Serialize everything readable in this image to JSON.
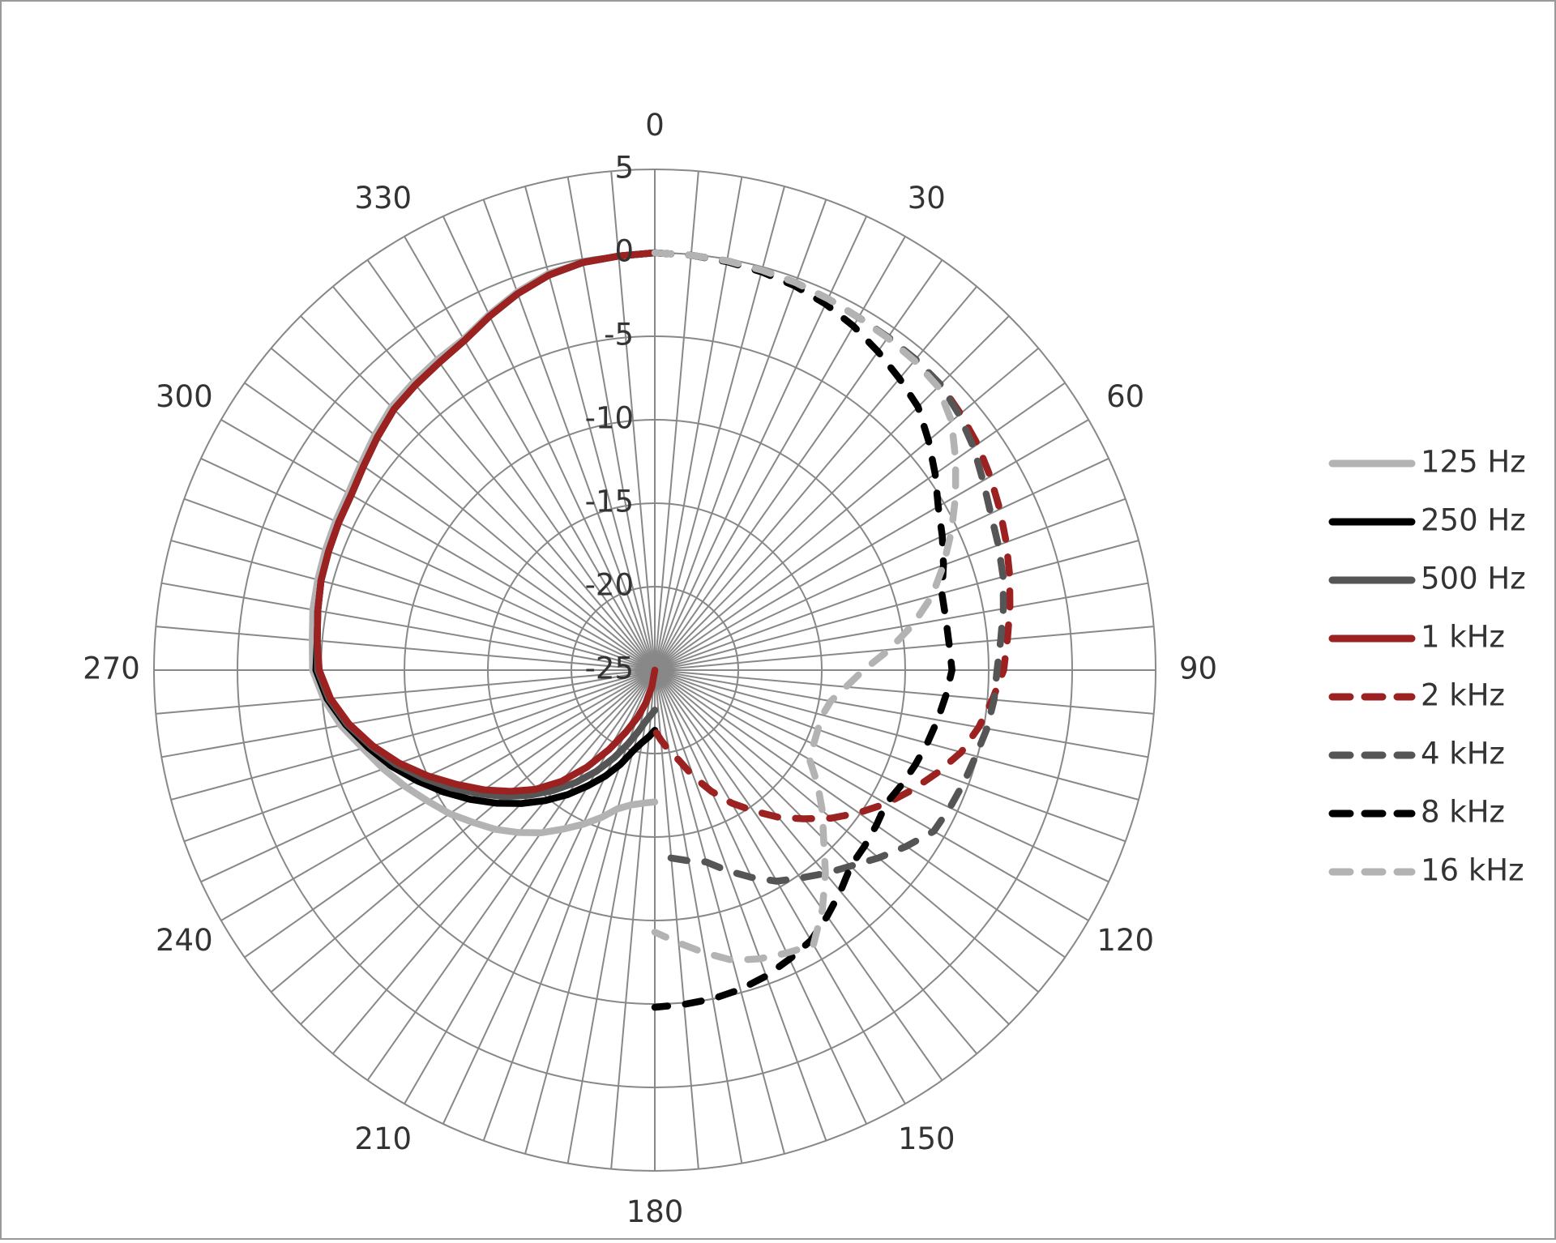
{
  "chart_data": {
    "type": "radar",
    "categories": [
      0,
      null,
      null,
      null,
      null,
      null,
      30,
      null,
      null,
      null,
      null,
      null,
      60,
      null,
      null,
      null,
      null,
      null,
      90,
      null,
      null,
      null,
      null,
      null,
      120,
      null,
      null,
      null,
      null,
      null,
      150,
      null,
      null,
      null,
      null,
      null,
      180,
      null,
      null,
      null,
      null,
      null,
      210,
      null,
      null,
      null,
      null,
      null,
      240,
      null,
      null,
      null,
      null,
      null,
      270,
      null,
      null,
      null,
      null,
      null,
      300,
      null,
      null,
      null,
      null,
      null,
      330,
      null,
      null,
      null,
      null,
      null
    ],
    "ylim": [
      -25,
      5
    ],
    "yticks": [
      -25,
      -20,
      -15,
      -10,
      -5,
      0,
      5
    ],
    "grid": true,
    "legend": "right",
    "series": [
      {
        "name": "125 Hz",
        "color": "#b3b3b3",
        "line_style": "solid",
        "values": [
          0,
          null,
          null,
          null,
          null,
          null,
          null,
          null,
          null,
          null,
          null,
          null,
          null,
          null,
          null,
          null,
          null,
          null,
          null,
          null,
          null,
          null,
          null,
          null,
          null,
          null,
          null,
          null,
          null,
          null,
          null,
          null,
          null,
          null,
          null,
          null,
          -17.1,
          -17.0,
          -16.8,
          -16.4,
          -15.6,
          -14.8,
          -14.0,
          -13.1,
          -12.3,
          -11.5,
          -10.8,
          -10.0,
          -9.3,
          -8.5,
          -7.7,
          -6.9,
          -5.9,
          -5.1,
          -4.5,
          -4.4,
          -4.2,
          -4.1,
          -4.0,
          -3.9,
          -3.8,
          -3.5,
          -3.1,
          -2.7,
          -2.5,
          -2.3,
          -2.1,
          -1.5,
          -0.9,
          -0.4,
          -0.2,
          -0.1
        ]
      },
      {
        "name": "250 Hz",
        "color": "#000000",
        "line_style": "solid",
        "values": [
          0,
          null,
          null,
          null,
          null,
          null,
          null,
          null,
          null,
          null,
          null,
          null,
          null,
          null,
          null,
          null,
          null,
          null,
          null,
          null,
          null,
          null,
          null,
          null,
          null,
          null,
          null,
          null,
          null,
          null,
          null,
          null,
          null,
          null,
          null,
          null,
          -21.4,
          -21.0,
          -20.6,
          -20.0,
          -19.0,
          -18.0,
          -17.0,
          -15.9,
          -14.8,
          -13.7,
          -12.6,
          -11.5,
          -10.4,
          -9.3,
          -8.2,
          -7.2,
          -6.2,
          -5.3,
          -4.7,
          -4.7,
          -4.5,
          -4.3,
          -4.2,
          -4.1,
          -4.0,
          -3.7,
          -3.3,
          -2.9,
          -2.7,
          -2.5,
          -2.2,
          -1.6,
          -1.0,
          -0.5,
          -0.2,
          -0.1
        ]
      },
      {
        "name": "500 Hz",
        "color": "#555555",
        "line_style": "solid",
        "values": [
          0,
          null,
          null,
          null,
          null,
          null,
          null,
          null,
          null,
          null,
          null,
          null,
          null,
          null,
          null,
          null,
          null,
          null,
          null,
          null,
          null,
          null,
          null,
          null,
          null,
          null,
          null,
          null,
          null,
          null,
          null,
          null,
          null,
          null,
          null,
          null,
          -22.6,
          -22.3,
          -21.9,
          -21.2,
          -20.3,
          -19.2,
          -18.0,
          -16.8,
          -15.6,
          -14.4,
          -13.2,
          -12.1,
          -10.9,
          -9.7,
          -8.5,
          -7.4,
          -6.3,
          -5.4,
          -4.8,
          -4.7,
          -4.5,
          -4.3,
          -4.2,
          -4.1,
          -4.0,
          -3.7,
          -3.3,
          -2.9,
          -2.7,
          -2.5,
          -2.2,
          -1.6,
          -1.0,
          -0.5,
          -0.2,
          -0.1
        ]
      },
      {
        "name": "1 kHz",
        "color": "#9c2121",
        "line_style": "solid",
        "values": [
          0,
          null,
          null,
          null,
          null,
          null,
          null,
          null,
          null,
          null,
          null,
          null,
          null,
          null,
          null,
          null,
          null,
          null,
          null,
          null,
          null,
          null,
          null,
          null,
          null,
          null,
          null,
          null,
          null,
          null,
          null,
          null,
          null,
          null,
          null,
          null,
          null,
          -25,
          -24.0,
          -23.0,
          -22.0,
          -20.9,
          -19.5,
          -17.9,
          -16.3,
          -14.9,
          -13.7,
          -12.5,
          -11.3,
          -10.0,
          -8.7,
          -7.5,
          -6.4,
          -5.5,
          -4.9,
          -4.7,
          -4.5,
          -4.3,
          -4.2,
          -4.1,
          -4.0,
          -3.7,
          -3.3,
          -2.9,
          -2.7,
          -2.5,
          -2.2,
          -1.6,
          -1.0,
          -0.5,
          -0.2,
          -0.1
        ]
      },
      {
        "name": "2 kHz",
        "color": "#9c2121",
        "line_style": "dashed",
        "values": [
          0,
          -0.05,
          -0.1,
          -0.2,
          -0.3,
          -0.45,
          -0.6,
          -0.65,
          -0.7,
          -0.8,
          -1.1,
          -1.4,
          -1.8,
          -2.2,
          -2.6,
          -3.0,
          -3.4,
          -3.8,
          -4.1,
          -4.7,
          -5.3,
          -6.0,
          -7.0,
          -8.0,
          -9.0,
          -10.1,
          -11.2,
          -12.4,
          -13.5,
          -14.7,
          -15.8,
          -17.0,
          -18.2,
          -19.4,
          -20.1,
          -20.8,
          -21.4,
          null,
          null,
          null,
          null,
          null,
          null,
          null,
          null,
          null,
          null,
          null,
          null,
          null,
          null,
          null,
          null,
          null,
          null,
          null,
          null,
          null,
          null,
          null,
          null,
          null,
          null,
          null,
          null,
          null,
          null,
          null,
          null,
          null,
          null,
          null
        ]
      },
      {
        "name": "4 kHz",
        "color": "#555555",
        "line_style": "dashed",
        "values": [
          0,
          -0.05,
          -0.1,
          -0.2,
          -0.3,
          -0.45,
          -0.6,
          -0.65,
          -0.7,
          -0.8,
          -1.2,
          -1.7,
          -2.3,
          -2.8,
          -3.1,
          -3.4,
          -3.8,
          -4.2,
          -4.5,
          -4.6,
          -4.8,
          -5.1,
          -5.3,
          -5.5,
          -5.7,
          -6.6,
          -7.5,
          -8.4,
          -9.1,
          -9.8,
          -10.4,
          -11.3,
          -12.2,
          -13.1,
          -13.4,
          -13.7,
          -14.0,
          null,
          null,
          null,
          null,
          null,
          null,
          null,
          null,
          null,
          null,
          null,
          null,
          null,
          null,
          null,
          null,
          null,
          null,
          null,
          null,
          null,
          null,
          null,
          null,
          null,
          null,
          null,
          null,
          null,
          null,
          null,
          null,
          null,
          null,
          null
        ]
      },
      {
        "name": "8 kHz",
        "color": "#000000",
        "line_style": "dashed",
        "values": [
          0,
          -0.05,
          -0.15,
          -0.3,
          -0.5,
          -0.8,
          -1.2,
          -1.7,
          -2.2,
          -2.7,
          -3.6,
          -4.5,
          -5.4,
          -6.0,
          -6.6,
          -7.2,
          -7.3,
          -7.3,
          -7.2,
          -7.5,
          -7.8,
          -8.1,
          -8.4,
          -8.7,
          -9.0,
          -8.8,
          -8.6,
          -8.4,
          -7.7,
          -7.0,
          -6.3,
          -5.9,
          -5.5,
          -5.2,
          -5.0,
          -4.9,
          -4.8,
          null,
          null,
          null,
          null,
          null,
          null,
          null,
          null,
          null,
          null,
          null,
          null,
          null,
          null,
          null,
          null,
          null,
          null,
          null,
          null,
          null,
          null,
          null,
          null,
          null,
          null,
          null,
          null,
          null,
          null,
          null,
          null,
          null,
          null,
          null
        ]
      },
      {
        "name": "16 kHz",
        "color": "#b3b3b3",
        "line_style": "dashed",
        "values": [
          0,
          -0.05,
          -0.1,
          -0.2,
          -0.3,
          -0.45,
          -0.6,
          -0.7,
          -0.8,
          -1.0,
          -1.8,
          -3.0,
          -4.2,
          -5.4,
          -6.6,
          -7.8,
          -9.3,
          -10.9,
          -12.5,
          -13.5,
          -14.3,
          -14.6,
          -14.6,
          -14.5,
          -14.3,
          -13.1,
          -11.9,
          -10.7,
          -9.1,
          -7.5,
          -6.0,
          -6.3,
          -6.6,
          -7.0,
          -7.8,
          -8.6,
          -9.3,
          null,
          null,
          null,
          null,
          null,
          null,
          null,
          null,
          null,
          null,
          null,
          null,
          null,
          null,
          null,
          null,
          null,
          null,
          null,
          null,
          null,
          null,
          null,
          null,
          null,
          null,
          null,
          null,
          null,
          null,
          null,
          null,
          null,
          null,
          null
        ]
      }
    ]
  }
}
